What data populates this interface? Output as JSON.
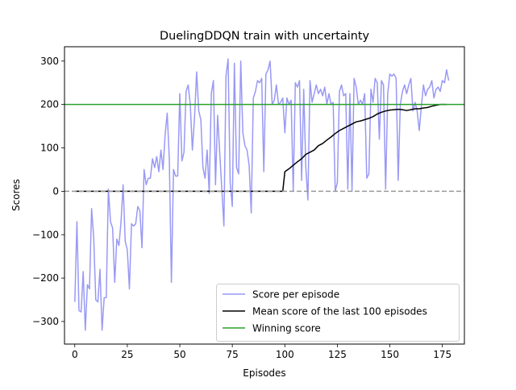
{
  "chart_data": {
    "type": "line",
    "title": "DuelingDDQN train with uncertainty",
    "xlabel": "Episodes",
    "ylabel": "Scores",
    "xlim": [
      -4.9,
      185.5
    ],
    "ylim": [
      -352,
      333
    ],
    "x_ticks": [
      0,
      25,
      50,
      75,
      100,
      125,
      150,
      175
    ],
    "y_ticks": [
      -300,
      -200,
      -100,
      0,
      100,
      200,
      300
    ],
    "grid": false,
    "legend_position": "lower-right",
    "series": [
      {
        "name": "Score per episode",
        "color": "#9999f5",
        "x_start": 0,
        "values": [
          -255,
          -70,
          -275,
          -278,
          -185,
          -320,
          -215,
          -225,
          -40,
          -105,
          -250,
          -255,
          -180,
          -320,
          -245,
          -245,
          5,
          -70,
          -85,
          -210,
          -110,
          -125,
          -70,
          15,
          -115,
          -135,
          -225,
          -75,
          -80,
          -75,
          -35,
          -45,
          -130,
          50,
          15,
          30,
          30,
          75,
          55,
          80,
          45,
          95,
          50,
          130,
          180,
          75,
          -210,
          50,
          35,
          35,
          225,
          70,
          90,
          230,
          245,
          200,
          95,
          170,
          275,
          185,
          165,
          55,
          30,
          95,
          -5,
          225,
          255,
          15,
          175,
          90,
          5,
          -80,
          265,
          305,
          20,
          -35,
          295,
          55,
          40,
          300,
          135,
          105,
          95,
          60,
          -50,
          215,
          230,
          255,
          250,
          260,
          45,
          270,
          280,
          300,
          200,
          210,
          245,
          200,
          205,
          215,
          135,
          215,
          200,
          210,
          0,
          250,
          240,
          255,
          25,
          235,
          55,
          -20,
          255,
          205,
          225,
          245,
          225,
          235,
          220,
          240,
          200,
          225,
          200,
          205,
          0,
          20,
          230,
          245,
          220,
          225,
          5,
          225,
          0,
          260,
          240,
          200,
          210,
          200,
          225,
          30,
          40,
          235,
          205,
          260,
          250,
          120,
          255,
          245,
          5,
          225,
          270,
          265,
          270,
          260,
          25,
          200,
          230,
          245,
          225,
          245,
          260,
          185,
          205,
          185,
          140,
          195,
          245,
          220,
          235,
          240,
          255,
          215,
          235,
          240,
          230,
          255,
          250,
          280,
          255
        ]
      },
      {
        "name": "Mean score of the last 100 episodes",
        "color": "#000000",
        "points": [
          [
            0,
            0
          ],
          [
            99,
            0
          ],
          [
            100,
            45
          ],
          [
            102,
            52
          ],
          [
            104,
            60
          ],
          [
            106,
            68
          ],
          [
            108,
            75
          ],
          [
            110,
            85
          ],
          [
            112,
            90
          ],
          [
            114,
            95
          ],
          [
            116,
            105
          ],
          [
            118,
            110
          ],
          [
            120,
            118
          ],
          [
            122,
            125
          ],
          [
            124,
            133
          ],
          [
            126,
            140
          ],
          [
            128,
            145
          ],
          [
            130,
            150
          ],
          [
            132,
            155
          ],
          [
            134,
            160
          ],
          [
            136,
            162
          ],
          [
            138,
            165
          ],
          [
            140,
            168
          ],
          [
            142,
            172
          ],
          [
            144,
            178
          ],
          [
            146,
            182
          ],
          [
            148,
            185
          ],
          [
            150,
            187
          ],
          [
            152,
            188
          ],
          [
            154,
            189
          ],
          [
            156,
            188
          ],
          [
            158,
            186
          ],
          [
            160,
            188
          ],
          [
            162,
            190
          ],
          [
            164,
            190
          ],
          [
            166,
            192
          ],
          [
            168,
            193
          ],
          [
            170,
            196
          ],
          [
            172,
            198
          ],
          [
            174,
            200
          ],
          [
            177,
            200
          ]
        ]
      },
      {
        "name": "Winning score",
        "color": "#2ca02c",
        "y": 200
      },
      {
        "name": "",
        "color": "#999999",
        "style": "dashed",
        "y": 0
      }
    ]
  }
}
